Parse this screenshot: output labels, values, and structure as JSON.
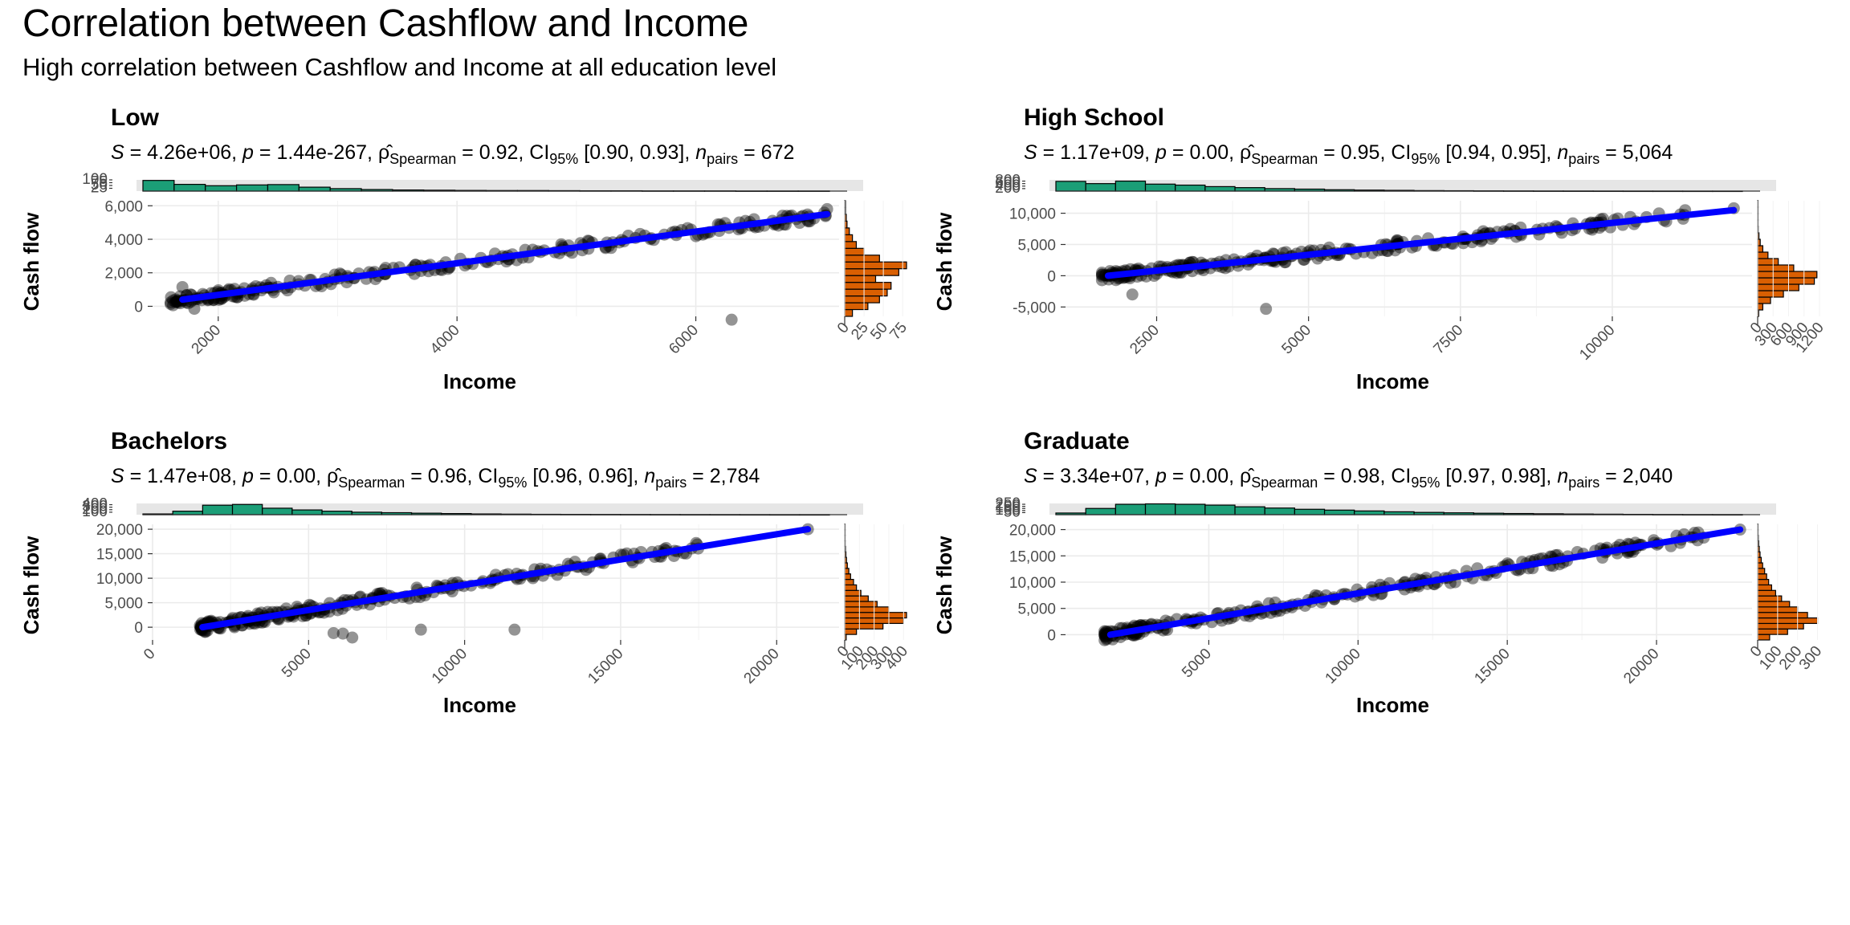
{
  "title": "Correlation between Cashflow and Income",
  "subtitle": "High correlation between Cashflow and Income at all education level",
  "colors": {
    "points": "#000000",
    "fit_line": "#0000ff",
    "x_hist": "#1b9e77",
    "y_hist": "#d95f02"
  },
  "chart_data": [
    {
      "type": "scatter",
      "title": "Low",
      "stats": {
        "S": "4.26e+06",
        "p": "1.44e-267",
        "rho": "0.92",
        "ci_low": "0.90",
        "ci_high": "0.93",
        "n": "672"
      },
      "xlabel": "Income",
      "ylabel": "Cash flow",
      "xlim": [
        1450,
        7200
      ],
      "ylim": [
        -600,
        6300
      ],
      "xticks": [
        2000,
        4000,
        6000
      ],
      "yticks": [
        0,
        2000,
        4000,
        6000
      ],
      "ytick_labels": [
        "0",
        "2,000",
        "4,000",
        "6,000"
      ],
      "fit": {
        "x0": 1700,
        "y0": 400,
        "x1": 7100,
        "y1": 5500
      },
      "x_range": [
        1600,
        7100
      ],
      "outliers": [
        [
          6300,
          -800
        ],
        [
          7100,
          5800
        ],
        [
          6900,
          5400
        ],
        [
          1800,
          -150
        ],
        [
          1700,
          1150
        ]
      ],
      "x_hist": {
        "bins": [
          95,
          60,
          48,
          55,
          58,
          35,
          22,
          14,
          10,
          8,
          6,
          5,
          5,
          4,
          3,
          3,
          2,
          2,
          2,
          1,
          1,
          1
        ],
        "ticks": [
          25,
          50,
          75,
          100
        ],
        "max": 100
      },
      "y_hist": {
        "bins": [
          10,
          30,
          45,
          55,
          60,
          40,
          70,
          80,
          45,
          25,
          15,
          10,
          6,
          3,
          2,
          1,
          1
        ],
        "ticks": [
          0,
          25,
          50,
          75
        ],
        "max": 80
      }
    },
    {
      "type": "scatter",
      "title": "High School",
      "stats": {
        "S": "1.17e+09",
        "p": "0.00",
        "rho": "0.95",
        "ci_low": "0.94",
        "ci_high": "0.95",
        "n": "5,064"
      },
      "xlabel": "Income",
      "ylabel": "Cash flow",
      "xlim": [
        1000,
        12300
      ],
      "ylim": [
        -6500,
        12000
      ],
      "xticks": [
        2500,
        5000,
        7500,
        10000
      ],
      "yticks": [
        -5000,
        0,
        5000,
        10000
      ],
      "ytick_labels": [
        "-5,000",
        "0",
        "5,000",
        "10,000"
      ],
      "fit": {
        "x0": 1700,
        "y0": 0,
        "x1": 12000,
        "y1": 10500
      },
      "x_range": [
        1600,
        11200
      ],
      "outliers": [
        [
          2100,
          -3000
        ],
        [
          4300,
          -5300
        ],
        [
          12000,
          10800
        ],
        [
          1600,
          500
        ]
      ],
      "x_hist": {
        "bins": [
          780,
          600,
          800,
          560,
          480,
          360,
          280,
          200,
          160,
          110,
          80,
          60,
          40,
          30,
          20,
          15,
          10,
          8,
          5,
          3,
          2,
          1,
          1
        ],
        "ticks": [
          200,
          400,
          600,
          800
        ],
        "max": 900
      },
      "y_hist": {
        "bins": [
          20,
          100,
          250,
          500,
          800,
          1100,
          1150,
          700,
          400,
          200,
          100,
          50,
          25,
          10,
          5,
          2,
          1,
          1
        ],
        "ticks": [
          0,
          300,
          600,
          900,
          1200
        ],
        "max": 1200
      }
    },
    {
      "type": "scatter",
      "title": "Bachelors",
      "stats": {
        "S": "1.47e+08",
        "p": "0.00",
        "rho": "0.96",
        "ci_low": "0.96",
        "ci_high": "0.96",
        "n": "2,784"
      },
      "xlabel": "Income",
      "ylabel": "Cash flow",
      "xlim": [
        0,
        22000
      ],
      "ylim": [
        -2600,
        21000
      ],
      "xticks": [
        0,
        5000,
        10000,
        15000,
        20000
      ],
      "yticks": [
        0,
        5000,
        10000,
        15000,
        20000
      ],
      "ytick_labels": [
        "0",
        "5,000",
        "10,000",
        "15,000",
        "20,000"
      ],
      "fit": {
        "x0": 1600,
        "y0": 0,
        "x1": 21000,
        "y1": 20000
      },
      "x_range": [
        1500,
        17600
      ],
      "outliers": [
        [
          5800,
          -1200
        ],
        [
          6100,
          -1300
        ],
        [
          6400,
          -2100
        ],
        [
          8600,
          -500
        ],
        [
          11600,
          -500
        ],
        [
          21000,
          20000
        ]
      ],
      "x_hist": {
        "bins": [
          30,
          140,
          380,
          410,
          260,
          190,
          140,
          100,
          80,
          60,
          45,
          30,
          22,
          15,
          12,
          10,
          8,
          6,
          4,
          3,
          2,
          1,
          1
        ],
        "ticks": [
          100,
          200,
          300,
          400
        ],
        "max": 450
      },
      "y_hist": {
        "bins": [
          10,
          80,
          260,
          400,
          420,
          300,
          220,
          160,
          110,
          80,
          60,
          40,
          28,
          18,
          12,
          8,
          5,
          3,
          2,
          1,
          1
        ],
        "ticks": [
          0,
          100,
          200,
          300,
          400
        ],
        "max": 420
      }
    },
    {
      "type": "scatter",
      "title": "Graduate",
      "stats": {
        "S": "3.34e+07",
        "p": "0.00",
        "rho": "0.98",
        "ci_low": "0.97",
        "ci_high": "0.98",
        "n": "2,040"
      },
      "xlabel": "Income",
      "ylabel": "Cash flow",
      "xlim": [
        200,
        23200
      ],
      "ylim": [
        -1000,
        21000
      ],
      "xticks": [
        5000,
        10000,
        15000,
        20000
      ],
      "yticks": [
        0,
        5000,
        10000,
        15000,
        20000
      ],
      "ytick_labels": [
        "0",
        "5,000",
        "10,000",
        "15,000",
        "20,000"
      ],
      "fit": {
        "x0": 1700,
        "y0": 0,
        "x1": 22800,
        "y1": 20000
      },
      "x_range": [
        1500,
        21600
      ],
      "outliers": [
        [
          22800,
          20000
        ],
        [
          1600,
          500
        ]
      ],
      "x_hist": {
        "bins": [
          40,
          150,
          250,
          260,
          250,
          230,
          190,
          160,
          130,
          110,
          90,
          70,
          55,
          45,
          35,
          28,
          22,
          16,
          12,
          8,
          5,
          3,
          2
        ],
        "ticks": [
          50,
          100,
          150,
          200,
          250
        ],
        "max": 270
      },
      "y_hist": {
        "bins": [
          60,
          150,
          230,
          300,
          250,
          200,
          160,
          120,
          90,
          70,
          55,
          45,
          35,
          25,
          18,
          12,
          8,
          5,
          3,
          2,
          1
        ],
        "ticks": [
          0,
          100,
          200,
          300
        ],
        "max": 310
      }
    }
  ]
}
